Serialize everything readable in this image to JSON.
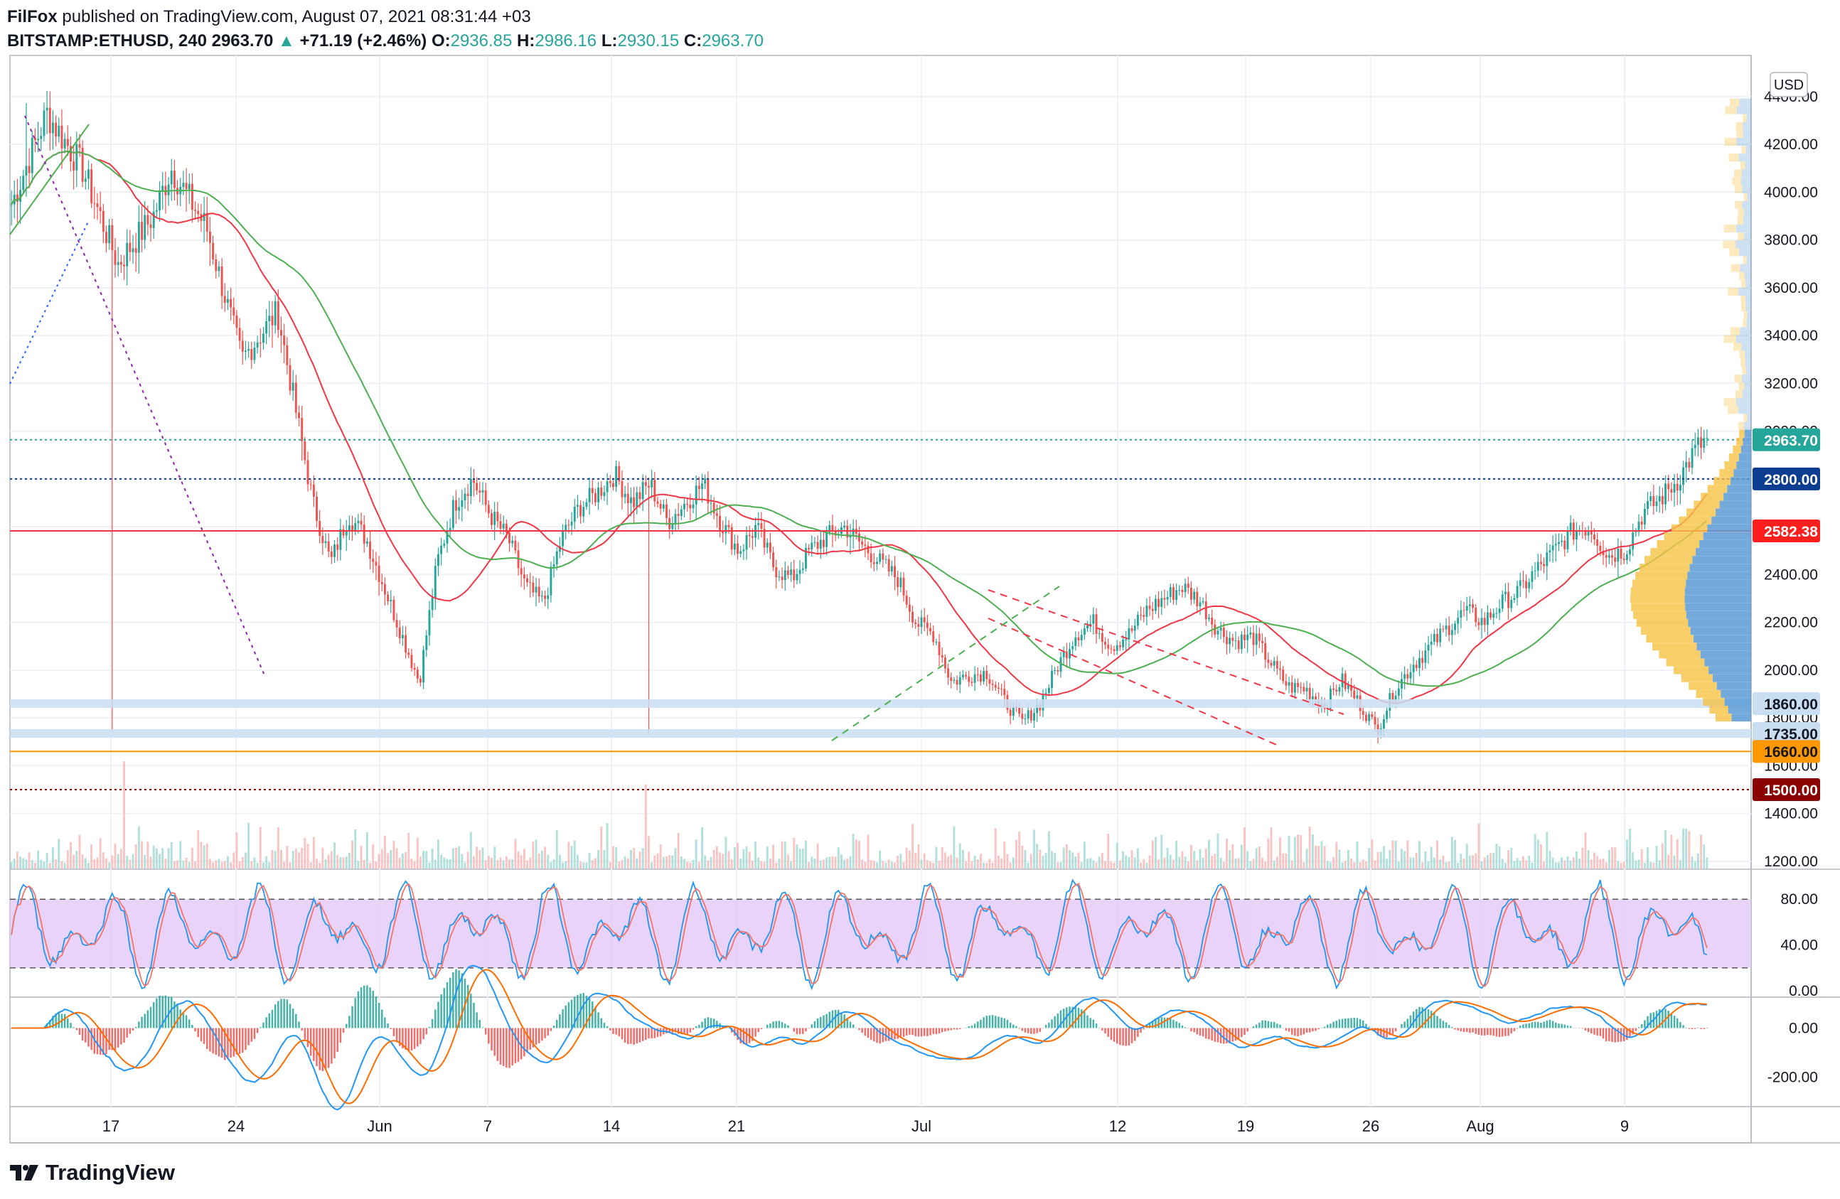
{
  "header": {
    "author": "FilFox",
    "published": "published on TradingView.com, August 07, 2021 08:31:44 +03",
    "symbol": "BITSTAMP:ETHUSD, 240",
    "last": "2963.70",
    "change": "+71.19 (+2.46%)",
    "o_label": "O:",
    "o": "2936.85",
    "h_label": "H:",
    "h": "2986.16",
    "l_label": "L:",
    "l": "2930.15",
    "c_label": "C:",
    "c": "2963.70"
  },
  "brand": "TradingView",
  "currency_badge": "USD",
  "colors": {
    "up": "#26a69a",
    "down": "#ef5350",
    "ma_red": "#f23645",
    "ma_green": "#4caf50",
    "rsi_band": "#e3c8f7",
    "stoch_k": "#2196f3",
    "stoch_d": "#f4736b",
    "macd": "#2196f3",
    "signal": "#ff6d00",
    "grid": "#eef1f6",
    "vp_blue": "#5b9bd5",
    "vp_yellow": "#f6c244"
  },
  "chart_data": [
    {
      "type": "candlestick",
      "title": "BITSTAMP:ETHUSD, 240",
      "x_ticks": [
        "17",
        "24",
        "Jun",
        "7",
        "14",
        "21",
        "Jul",
        "12",
        "19",
        "26",
        "Aug",
        "9"
      ],
      "y_ticks": [
        "1200.00",
        "1400.00",
        "1600.00",
        "1800.00",
        "2000.00",
        "2200.00",
        "2400.00",
        "2600.00",
        "2800.00",
        "3000.00",
        "3200.00",
        "3400.00",
        "3600.00",
        "3800.00",
        "4000.00",
        "4200.00",
        "4400.00"
      ],
      "ylim": [
        1170,
        4560
      ],
      "price_path": [
        [
          0,
          3950
        ],
        [
          2,
          4330
        ],
        [
          4,
          4100
        ],
        [
          6,
          3700
        ],
        [
          8,
          3900
        ],
        [
          9,
          4100
        ],
        [
          11,
          3850
        ],
        [
          13,
          3300
        ],
        [
          15,
          3500
        ],
        [
          16,
          3100
        ],
        [
          17,
          2700
        ],
        [
          18,
          2450
        ],
        [
          19,
          2650
        ],
        [
          20,
          2550
        ],
        [
          21,
          2350
        ],
        [
          22,
          2150
        ],
        [
          23,
          1950
        ],
        [
          24,
          2450
        ],
        [
          25,
          2700
        ],
        [
          26,
          2800
        ],
        [
          27,
          2650
        ],
        [
          28,
          2550
        ],
        [
          29,
          2350
        ],
        [
          30,
          2280
        ],
        [
          31,
          2550
        ],
        [
          32,
          2680
        ],
        [
          33,
          2740
        ],
        [
          34,
          2820
        ],
        [
          35,
          2700
        ],
        [
          36,
          2780
        ],
        [
          37,
          2620
        ],
        [
          38,
          2700
        ],
        [
          39,
          2780
        ],
        [
          40,
          2620
        ],
        [
          41,
          2500
        ],
        [
          42,
          2600
        ],
        [
          43,
          2430
        ],
        [
          44,
          2380
        ],
        [
          45,
          2500
        ],
        [
          46,
          2560
        ],
        [
          47,
          2600
        ],
        [
          48,
          2520
        ],
        [
          49,
          2450
        ],
        [
          50,
          2380
        ],
        [
          51,
          2200
        ],
        [
          52,
          2150
        ],
        [
          53,
          1950
        ],
        [
          54,
          1980
        ],
        [
          55,
          1990
        ],
        [
          56,
          1870
        ],
        [
          57,
          1780
        ],
        [
          58,
          1860
        ],
        [
          59,
          2020
        ],
        [
          60,
          2150
        ],
        [
          61,
          2200
        ],
        [
          62,
          2100
        ],
        [
          63,
          2150
        ],
        [
          64,
          2250
        ],
        [
          65,
          2300
        ],
        [
          66,
          2350
        ],
        [
          67,
          2290
        ],
        [
          68,
          2170
        ],
        [
          69,
          2120
        ],
        [
          70,
          2140
        ],
        [
          71,
          2030
        ],
        [
          72,
          1930
        ],
        [
          73,
          1920
        ],
        [
          74,
          1850
        ],
        [
          75,
          1960
        ],
        [
          76,
          1860
        ],
        [
          77,
          1750
        ],
        [
          78,
          1920
        ],
        [
          79,
          2020
        ],
        [
          80,
          2100
        ],
        [
          81,
          2180
        ],
        [
          82,
          2250
        ],
        [
          83,
          2200
        ],
        [
          84,
          2280
        ],
        [
          85,
          2330
        ],
        [
          86,
          2420
        ],
        [
          87,
          2500
        ],
        [
          88,
          2580
        ],
        [
          89,
          2600
        ],
        [
          90,
          2480
        ],
        [
          91,
          2500
        ],
        [
          92,
          2660
        ],
        [
          93,
          2720
        ],
        [
          94,
          2800
        ],
        [
          95,
          2930
        ],
        [
          95.6,
          2964
        ]
      ],
      "high_low_extremes": {
        "high": 4372,
        "low": 1730,
        "last": 2963.7
      },
      "price_labels": [
        {
          "text": "2963.70",
          "price": 2963.7,
          "bg": "#26a69a",
          "color": "#ffffff"
        },
        {
          "text": "2800.00",
          "price": 2800,
          "bg": "#0b3d91",
          "color": "#ffffff"
        },
        {
          "text": "2582.38",
          "price": 2582.38,
          "bg": "#ff1e1e",
          "color": "#ffffff"
        },
        {
          "text": "1860.00",
          "price": 1860,
          "bg": "#c9def2",
          "color": "#131722"
        },
        {
          "text": "1735.00",
          "price": 1735,
          "bg": "#c9def2",
          "color": "#131722"
        },
        {
          "text": "1660.00",
          "price": 1660,
          "bg": "#ff9800",
          "color": "#131722"
        },
        {
          "text": "1500.00",
          "price": 1500,
          "bg": "#8b0000",
          "color": "#ffffff"
        }
      ],
      "horizontal_levels": [
        {
          "price": 2963.7,
          "style": "dotted",
          "color": "#26a69a"
        },
        {
          "price": 2800,
          "style": "dotted",
          "color": "#0b3d91"
        },
        {
          "price": 2582.38,
          "style": "solid",
          "color": "#f23645"
        },
        {
          "price": 1860,
          "style": "band",
          "color": "#c9def2"
        },
        {
          "price": 1735,
          "style": "band",
          "color": "#c9def2"
        },
        {
          "price": 1660,
          "style": "solid",
          "color": "#ff9800"
        },
        {
          "price": 1500,
          "style": "dotted",
          "color": "#8b0000"
        }
      ]
    },
    {
      "type": "line",
      "title": "",
      "y_ticks": [
        "0.00",
        "40.00",
        "80.00"
      ],
      "ylim": [
        -5,
        105
      ],
      "band": [
        20,
        80
      ]
    },
    {
      "type": "line",
      "title": "",
      "y_ticks": [
        "-200.00",
        "0.00"
      ],
      "ylim": [
        -320,
        120
      ]
    }
  ]
}
